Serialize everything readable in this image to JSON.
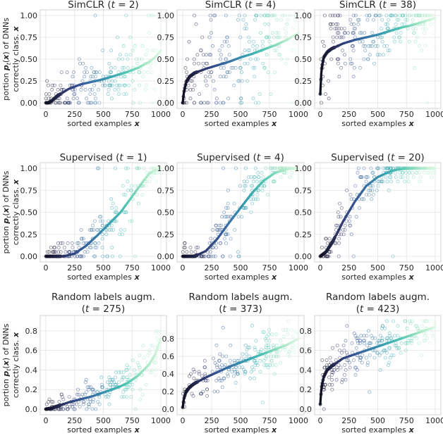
{
  "figure": {
    "shared_xlabel": "sorted examples",
    "shared_xvar": "x",
    "shared_ylabel_prefix": "portion",
    "shared_ylabel_rest": "of DNNs",
    "shared_ylabel_line2": "correctly class."
  },
  "palette": [
    "#0b0c1e",
    "#2b2e5e",
    "#34508f",
    "#3977a8",
    "#37a2b0",
    "#52c6b3",
    "#9de3c1",
    "#dbf7e1"
  ],
  "chart_data": [
    {
      "type": "scatter",
      "title": "SimCLR (t = 2)",
      "title_pre": "SimCLR (",
      "t": "2",
      "title_lines": 1,
      "xlim": [
        0,
        1000
      ],
      "ylim": [
        0,
        1.0
      ],
      "xticks": [
        "0",
        "250",
        "500",
        "750",
        "1000"
      ],
      "yticks": [
        "0.00",
        "0.25",
        "0.50",
        "0.75",
        "1.00"
      ],
      "grid": true,
      "xlabel": "sorted examples x",
      "ylabel": "portion p_t(x) of DNNs correctly class. x",
      "mean_curve": {
        "x": [
          0,
          20,
          50,
          100,
          200,
          300,
          400,
          500,
          600,
          700,
          800,
          900,
          950,
          1000
        ],
        "y": [
          0.0,
          0.0,
          0.02,
          0.08,
          0.16,
          0.21,
          0.24,
          0.27,
          0.31,
          0.35,
          0.4,
          0.47,
          0.52,
          0.6
        ]
      },
      "noise": 0.17
    },
    {
      "type": "scatter",
      "title": "SimCLR (t = 4)",
      "title_pre": "SimCLR (",
      "t": "4",
      "title_lines": 1,
      "xlim": [
        0,
        1000
      ],
      "ylim": [
        0,
        1.0
      ],
      "xticks": [
        "0",
        "250",
        "500",
        "750",
        "1000"
      ],
      "yticks": [
        "0.00",
        "0.25",
        "0.50",
        "0.75",
        "1.00"
      ],
      "grid": true,
      "xlabel": "sorted examples x",
      "ylabel": "",
      "mean_curve": {
        "x": [
          0,
          10,
          30,
          60,
          100,
          200,
          300,
          400,
          500,
          600,
          700,
          800,
          900,
          1000
        ],
        "y": [
          0.0,
          0.12,
          0.24,
          0.3,
          0.34,
          0.39,
          0.43,
          0.47,
          0.52,
          0.56,
          0.61,
          0.66,
          0.72,
          0.8
        ]
      },
      "noise": 0.22
    },
    {
      "type": "scatter",
      "title": "SimCLR (t = 38)",
      "title_pre": "SimCLR (",
      "t": "38",
      "title_lines": 1,
      "xlim": [
        0,
        1000
      ],
      "ylim": [
        0,
        1.0
      ],
      "xticks": [
        "0",
        "250",
        "500",
        "750",
        "1000"
      ],
      "yticks": [
        "0.00",
        "0.25",
        "0.50",
        "0.75",
        "1.00"
      ],
      "grid": true,
      "xlabel": "sorted examples x",
      "ylabel": "",
      "mean_curve": {
        "x": [
          0,
          10,
          30,
          60,
          100,
          200,
          300,
          400,
          500,
          600,
          700,
          800,
          900,
          1000
        ],
        "y": [
          0.1,
          0.38,
          0.52,
          0.58,
          0.62,
          0.68,
          0.72,
          0.75,
          0.78,
          0.82,
          0.86,
          0.89,
          0.93,
          0.97
        ]
      },
      "noise": 0.22
    },
    {
      "type": "scatter",
      "title": "Supervised (t = 1)",
      "title_pre": "Supervised (",
      "t": "1",
      "title_lines": 1,
      "xlim": [
        0,
        1000
      ],
      "ylim": [
        0,
        1.0
      ],
      "xticks": [
        "0",
        "250",
        "500",
        "750",
        "1000"
      ],
      "yticks": [
        "0.00",
        "0.25",
        "0.50",
        "0.75",
        "1.00"
      ],
      "grid": true,
      "xlabel": "sorted examples x",
      "ylabel": "portion p_t(x) of DNNs correctly class. x",
      "mean_curve": {
        "x": [
          0,
          150,
          250,
          350,
          450,
          550,
          650,
          750,
          850,
          900,
          950,
          1000
        ],
        "y": [
          0.0,
          0.0,
          0.03,
          0.12,
          0.24,
          0.37,
          0.5,
          0.68,
          0.86,
          0.94,
          0.98,
          1.0
        ]
      },
      "noise": 0.12
    },
    {
      "type": "scatter",
      "title": "Supervised (t = 4)",
      "title_pre": "Supervised (",
      "t": "4",
      "title_lines": 1,
      "xlim": [
        0,
        1000
      ],
      "ylim": [
        0,
        1.0
      ],
      "xticks": [
        "0",
        "250",
        "500",
        "750",
        "1000"
      ],
      "yticks": [
        "0.00",
        "0.25",
        "0.50",
        "0.75",
        "1.00"
      ],
      "grid": true,
      "xlabel": "sorted examples x",
      "ylabel": "",
      "mean_curve": {
        "x": [
          0,
          100,
          200,
          300,
          400,
          500,
          600,
          700,
          800,
          900,
          1000
        ],
        "y": [
          0.0,
          0.0,
          0.06,
          0.2,
          0.38,
          0.55,
          0.72,
          0.86,
          0.95,
          0.99,
          1.0
        ]
      },
      "noise": 0.12
    },
    {
      "type": "scatter",
      "title": "Supervised (t = 20)",
      "title_pre": "Supervised (",
      "t": "20",
      "title_lines": 1,
      "xlim": [
        0,
        1000
      ],
      "ylim": [
        0,
        1.0
      ],
      "xticks": [
        "0",
        "250",
        "500",
        "750",
        "1000"
      ],
      "yticks": [
        "0.00",
        "0.25",
        "0.50",
        "0.75",
        "1.00"
      ],
      "grid": true,
      "xlabel": "sorted examples x",
      "ylabel": "",
      "mean_curve": {
        "x": [
          0,
          50,
          100,
          150,
          200,
          300,
          400,
          500,
          600,
          650,
          700,
          800,
          1000
        ],
        "y": [
          0.0,
          0.05,
          0.15,
          0.27,
          0.4,
          0.62,
          0.8,
          0.9,
          0.96,
          0.98,
          0.99,
          1.0,
          1.0
        ]
      },
      "noise": 0.12
    },
    {
      "type": "scatter",
      "title": "Random labels augm. (t = 275)",
      "title_line1": "Random labels augm.",
      "title_pre": "(",
      "t": "275",
      "title_lines": 2,
      "xlim": [
        0,
        1000
      ],
      "ylim": [
        0,
        0.9
      ],
      "xticks": [
        "0",
        "250",
        "500",
        "750",
        "1000"
      ],
      "yticks": [
        "0.0",
        "0.2",
        "0.4",
        "0.6",
        "0.8"
      ],
      "grid": true,
      "xlabel": "sorted examples x",
      "ylabel": "portion p_t(x) of DNNs correctly class. x",
      "mean_curve": {
        "x": [
          0,
          50,
          100,
          200,
          300,
          400,
          500,
          600,
          700,
          800,
          900,
          950,
          1000
        ],
        "y": [
          0.0,
          0.01,
          0.03,
          0.07,
          0.1,
          0.13,
          0.17,
          0.21,
          0.26,
          0.34,
          0.46,
          0.56,
          0.72
        ]
      },
      "noise": 0.1
    },
    {
      "type": "scatter",
      "title": "Random labels augm. (t = 373)",
      "title_line1": "Random labels augm.",
      "title_pre": "(",
      "t": "373",
      "title_lines": 2,
      "xlim": [
        0,
        1000
      ],
      "ylim": [
        0,
        1.0
      ],
      "xticks": [
        "0",
        "250",
        "500",
        "750",
        "1000"
      ],
      "yticks": [
        "0.0",
        "0.2",
        "0.4",
        "0.6",
        "0.8"
      ],
      "grid": true,
      "xlabel": "sorted examples x",
      "ylabel": "",
      "mean_curve": {
        "x": [
          0,
          10,
          30,
          60,
          100,
          200,
          300,
          400,
          500,
          600,
          700,
          800,
          900,
          1000
        ],
        "y": [
          0.02,
          0.12,
          0.2,
          0.25,
          0.29,
          0.36,
          0.42,
          0.48,
          0.53,
          0.58,
          0.63,
          0.68,
          0.73,
          0.8
        ]
      },
      "noise": 0.11
    },
    {
      "type": "scatter",
      "title": "Random labels augm. (t = 423)",
      "title_line1": "Random labels augm.",
      "title_pre": "(",
      "t": "423",
      "title_lines": 2,
      "xlim": [
        0,
        1000
      ],
      "ylim": [
        0,
        0.9
      ],
      "xticks": [
        "0",
        "250",
        "500",
        "750",
        "1000"
      ],
      "yticks": [
        "0.0",
        "0.2",
        "0.4",
        "0.6",
        "0.8"
      ],
      "grid": true,
      "xlabel": "sorted examples x",
      "ylabel": "",
      "mean_curve": {
        "x": [
          0,
          10,
          30,
          60,
          100,
          200,
          300,
          400,
          500,
          600,
          700,
          800,
          900,
          1000
        ],
        "y": [
          0.05,
          0.22,
          0.33,
          0.4,
          0.44,
          0.52,
          0.56,
          0.6,
          0.64,
          0.68,
          0.72,
          0.76,
          0.8,
          0.84
        ]
      },
      "noise": 0.11
    }
  ]
}
